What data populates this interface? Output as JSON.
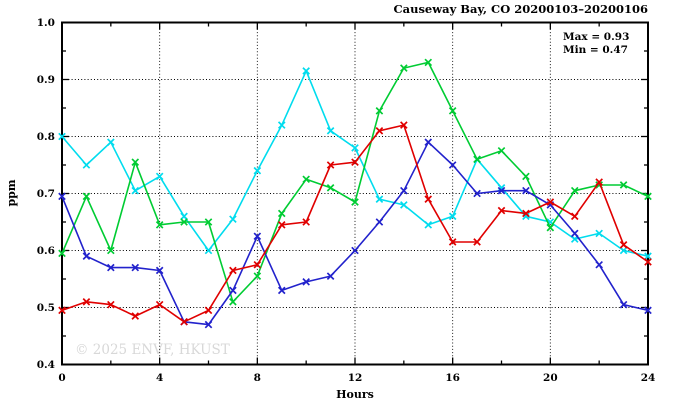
{
  "watermark": "© 2025 ENVF, HKUST",
  "chart_data": {
    "type": "line",
    "title": "Causeway Bay, CO 20200103–20200106",
    "xlabel": "Hours",
    "ylabel": "ppm",
    "xlim": [
      0,
      24
    ],
    "ylim": [
      0.4,
      1.0
    ],
    "x_major_ticks": [
      0,
      4,
      8,
      12,
      16,
      20,
      24
    ],
    "x_minor_ticks": [
      2,
      6,
      10,
      14,
      18,
      22
    ],
    "y_major_ticks": [
      0.4,
      0.5,
      0.6,
      0.7,
      0.8,
      0.9,
      1.0
    ],
    "y_major_tick_labels": [
      "0.4",
      "0.5",
      "0.6",
      "0.7",
      "0.8",
      "0.9",
      "1.0"
    ],
    "y_minor_ticks": [
      0.45,
      0.55,
      0.65,
      0.75,
      0.85,
      0.95
    ],
    "x_gridlines": [
      4,
      8,
      12,
      16,
      20
    ],
    "y_gridlines": [
      0.5,
      0.6,
      0.7,
      0.8,
      0.9
    ],
    "grid_style": "dotted",
    "legend_position": "none",
    "marker": "x",
    "annotations": {
      "max_label": "Max = 0.93",
      "min_label": "Min = 0.47"
    },
    "x": [
      0,
      1,
      2,
      3,
      4,
      5,
      6,
      7,
      8,
      9,
      10,
      11,
      12,
      13,
      14,
      15,
      16,
      17,
      18,
      19,
      20,
      21,
      22,
      23,
      24
    ],
    "series": [
      {
        "name": "cyan",
        "color": "#00dcee",
        "values": [
          0.8,
          0.75,
          0.79,
          0.705,
          0.73,
          0.66,
          0.6,
          0.655,
          0.74,
          0.82,
          0.915,
          0.81,
          0.78,
          0.69,
          0.68,
          0.645,
          0.66,
          0.76,
          0.71,
          0.66,
          0.65,
          0.62,
          0.63,
          0.6,
          0.59
        ]
      },
      {
        "name": "green",
        "color": "#00cc33",
        "values": [
          0.595,
          0.695,
          0.6,
          0.755,
          0.645,
          0.65,
          0.65,
          0.51,
          0.555,
          0.665,
          0.725,
          0.71,
          0.685,
          0.845,
          0.92,
          0.93,
          0.845,
          0.76,
          0.775,
          0.73,
          0.64,
          0.705,
          0.715,
          0.715,
          0.695
        ]
      },
      {
        "name": "blue",
        "color": "#2222cc",
        "values": [
          0.695,
          0.59,
          0.57,
          0.57,
          0.565,
          0.475,
          0.47,
          0.53,
          0.625,
          0.53,
          0.545,
          0.555,
          0.6,
          0.65,
          0.705,
          0.79,
          0.75,
          0.7,
          0.705,
          0.705,
          0.68,
          0.63,
          0.575,
          0.505,
          0.495
        ]
      },
      {
        "name": "red",
        "color": "#e00000",
        "values": [
          0.495,
          0.51,
          0.505,
          0.485,
          0.505,
          0.475,
          0.495,
          0.565,
          0.575,
          0.645,
          0.65,
          0.75,
          0.755,
          0.81,
          0.82,
          0.69,
          0.615,
          0.615,
          0.67,
          0.665,
          0.685,
          0.66,
          0.72,
          0.61,
          0.58
        ]
      }
    ]
  }
}
